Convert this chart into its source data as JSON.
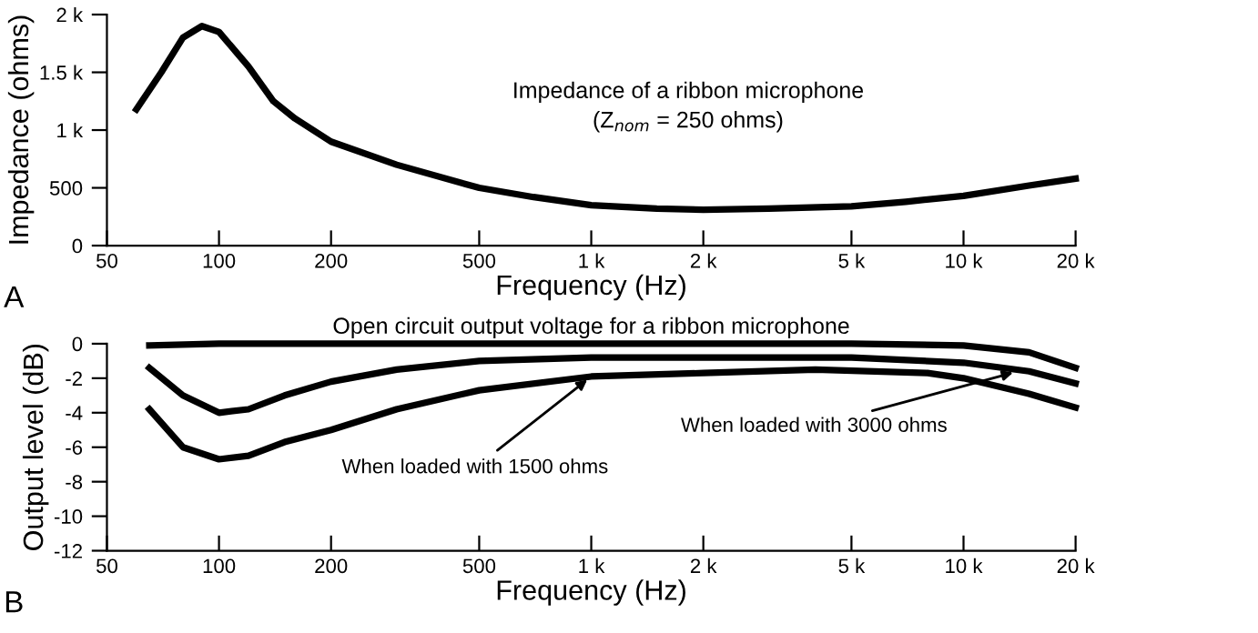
{
  "chart_data": [
    {
      "type": "line",
      "xlabel": "Frequency (Hz)",
      "ylabel": "Impedance (ohms)",
      "annotations": [
        "Impedance of a ribbon microphone\n(Z$_{nom}$ = 250 ohms)",
        "A"
      ],
      "series": [
        {
          "color": "#000000",
          "x": [
            60,
            70,
            80,
            90,
            100,
            120,
            140,
            160,
            200,
            300,
            500,
            700,
            1000,
            1500,
            2000,
            3000,
            5000,
            7000,
            10000,
            15000,
            20000
          ],
          "values": [
            1180,
            1500,
            1800,
            1900,
            1850,
            1550,
            1250,
            1100,
            900,
            700,
            500,
            420,
            350,
            320,
            310,
            320,
            340,
            380,
            430,
            520,
            580
          ]
        }
      ],
      "log": "x",
      "xlim": [
        50,
        20000
      ],
      "ylim": [
        0,
        2000
      ],
      "xticks": [
        50,
        100,
        200,
        500,
        {
          "value": 1000,
          "label": "1 k"
        },
        {
          "value": 2000,
          "label": "2 k"
        },
        {
          "value": 5000,
          "label": "5 k"
        },
        {
          "value": 10000,
          "label": "10 k"
        },
        {
          "value": 20000,
          "label": "20 k"
        }
      ],
      "yticks": [
        0,
        500,
        {
          "value": 1000,
          "label": "1 k"
        },
        {
          "value": 1500,
          "label": "1.5 k"
        },
        {
          "value": 2000,
          "label": "2 k"
        }
      ],
      "grid": false,
      "legend": false,
      "marker": "none",
      "line_style": "solid"
    },
    {
      "type": "line",
      "title": "Open circuit output voltage for a ribbon microphone",
      "xlabel": "Frequency (Hz)",
      "ylabel": "Output level (dB)",
      "annotations": [
        {
          "text": "When loaded with 1500 ohms",
          "x": 1000,
          "y": -1.9
        },
        {
          "text": "When loaded with 3000 ohms",
          "x": 14000,
          "y": -1.6
        },
        "B"
      ],
      "series": [
        {
          "color": "#000000",
          "x": [
            65,
            100,
            300,
            1000,
            3000,
            5000,
            10000,
            15000,
            20000
          ],
          "values": [
            -0.1,
            0,
            0,
            0,
            0,
            0,
            -0.1,
            -0.5,
            -1.4
          ]
        },
        {
          "color": "#000000",
          "x": [
            65,
            80,
            100,
            120,
            150,
            200,
            300,
            500,
            1000,
            3000,
            5000,
            10000,
            15000,
            20000
          ],
          "values": [
            -1.4,
            -3,
            -4,
            -3.8,
            -3,
            -2.2,
            -1.5,
            -1,
            -0.8,
            -0.8,
            -0.8,
            -1.1,
            -1.6,
            -2.3
          ]
        },
        {
          "color": "#000000",
          "x": [
            65,
            80,
            100,
            120,
            150,
            200,
            300,
            500,
            1000,
            2000,
            4000,
            8000,
            10000,
            15000,
            20000
          ],
          "values": [
            -3.8,
            -6,
            -6.7,
            -6.5,
            -5.7,
            -5,
            -3.8,
            -2.7,
            -1.9,
            -1.7,
            -1.5,
            -1.7,
            -2,
            -2.9,
            -3.7
          ]
        }
      ],
      "log": "x",
      "xlim": [
        50,
        20000
      ],
      "ylim": [
        -12,
        0
      ],
      "xticks": [
        50,
        100,
        200,
        500,
        {
          "value": 1000,
          "label": "1 k"
        },
        {
          "value": 2000,
          "label": "2 k"
        },
        {
          "value": 5000,
          "label": "5 k"
        },
        {
          "value": 10000,
          "label": "10 k"
        },
        {
          "value": 20000,
          "label": "20 k"
        }
      ],
      "yticks": [
        0,
        -2,
        -4,
        -6,
        -8,
        -10,
        -12
      ],
      "grid": false,
      "legend": false,
      "marker": "none",
      "line_style": "solid"
    }
  ]
}
